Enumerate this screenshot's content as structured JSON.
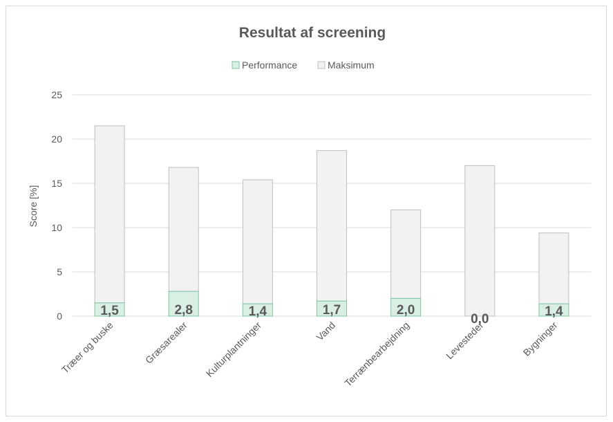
{
  "chart_data": {
    "type": "bar",
    "title": "Resultat af screening",
    "ylabel": "Score [%]",
    "xlabel": "",
    "ylim": [
      0,
      25
    ],
    "yticks": [
      0,
      5,
      10,
      15,
      20,
      25
    ],
    "grid": true,
    "legend_position": "top",
    "categories": [
      "Træer og buske",
      "Græsarealer",
      "Kulturplantninger",
      "Vand",
      "Terrænbearbejdning",
      "Levesteder",
      "Bygninger"
    ],
    "series": [
      {
        "name": "Performance",
        "values": [
          1.5,
          2.8,
          1.4,
          1.7,
          2.0,
          0.0,
          1.4
        ],
        "labels": [
          "1,5",
          "2,8",
          "1,4",
          "1,7",
          "2,0",
          "0,0",
          "1,4"
        ],
        "color": "#d9efe3",
        "border": "#7cc49e"
      },
      {
        "name": "Maksimum",
        "values": [
          20,
          14,
          14,
          17,
          10,
          17,
          8
        ],
        "color": "#f2f2f2",
        "border": "#bfbfbf"
      }
    ]
  }
}
